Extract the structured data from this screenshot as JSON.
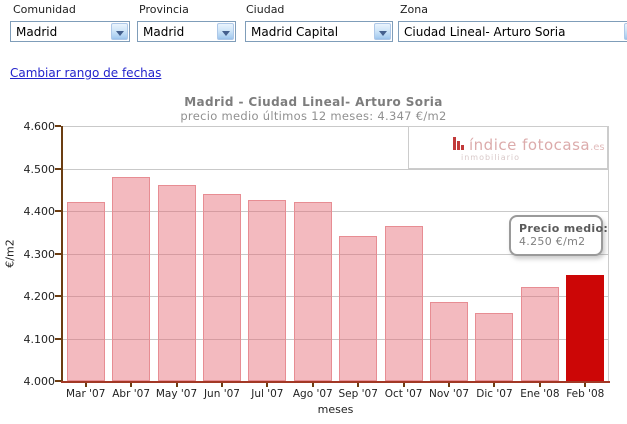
{
  "filters": [
    {
      "label": "Comunidad",
      "value": "Madrid"
    },
    {
      "label": "Provincia",
      "value": "Madrid"
    },
    {
      "label": "Ciudad",
      "value": "Madrid Capital"
    },
    {
      "label": "Zona",
      "value": "Ciudad Lineal- Arturo Soria"
    }
  ],
  "date_range_link": "Cambiar rango de fechas",
  "watermark": {
    "icon": "bar-chart-icon",
    "text_main": "índice fotocasa",
    "text_suffix": ".es",
    "text_sub": "inmobiliario"
  },
  "chart_data": {
    "type": "bar",
    "title": "Madrid - Ciudad Lineal- Arturo Soria",
    "subtitle": "precio medio últimos 12 meses: 4.347 €/m2",
    "xlabel": "meses",
    "ylabel": "€/m2",
    "categories": [
      "Mar '07",
      "Abr '07",
      "May '07",
      "Jun '07",
      "Jul '07",
      "Ago '07",
      "Sep '07",
      "Oct '07",
      "Nov '07",
      "Dic '07",
      "Ene '08",
      "Feb '08"
    ],
    "values": [
      4420,
      4480,
      4460,
      4440,
      4425,
      4420,
      4340,
      4365,
      4185,
      4160,
      4220,
      4250
    ],
    "highlight_index": 11,
    "highlight_tooltip": {
      "label": "Precio medio:",
      "value": "4.250 €/m2"
    },
    "ylim": [
      4000,
      4600
    ],
    "ytick_step": 100,
    "ytick_labels": [
      "4.000",
      "4.100",
      "4.200",
      "4.300",
      "4.400",
      "4.500",
      "4.600"
    ],
    "grid": true,
    "legend": "none",
    "colors": {
      "bar_fill": "#f3b7bb",
      "bar_border": "#e78d93",
      "highlight": "#cc0606",
      "grid": "#c9c9c9",
      "y_axis": "#6b3d12",
      "x_axis": "#a23825",
      "link": "#2323cc"
    }
  }
}
